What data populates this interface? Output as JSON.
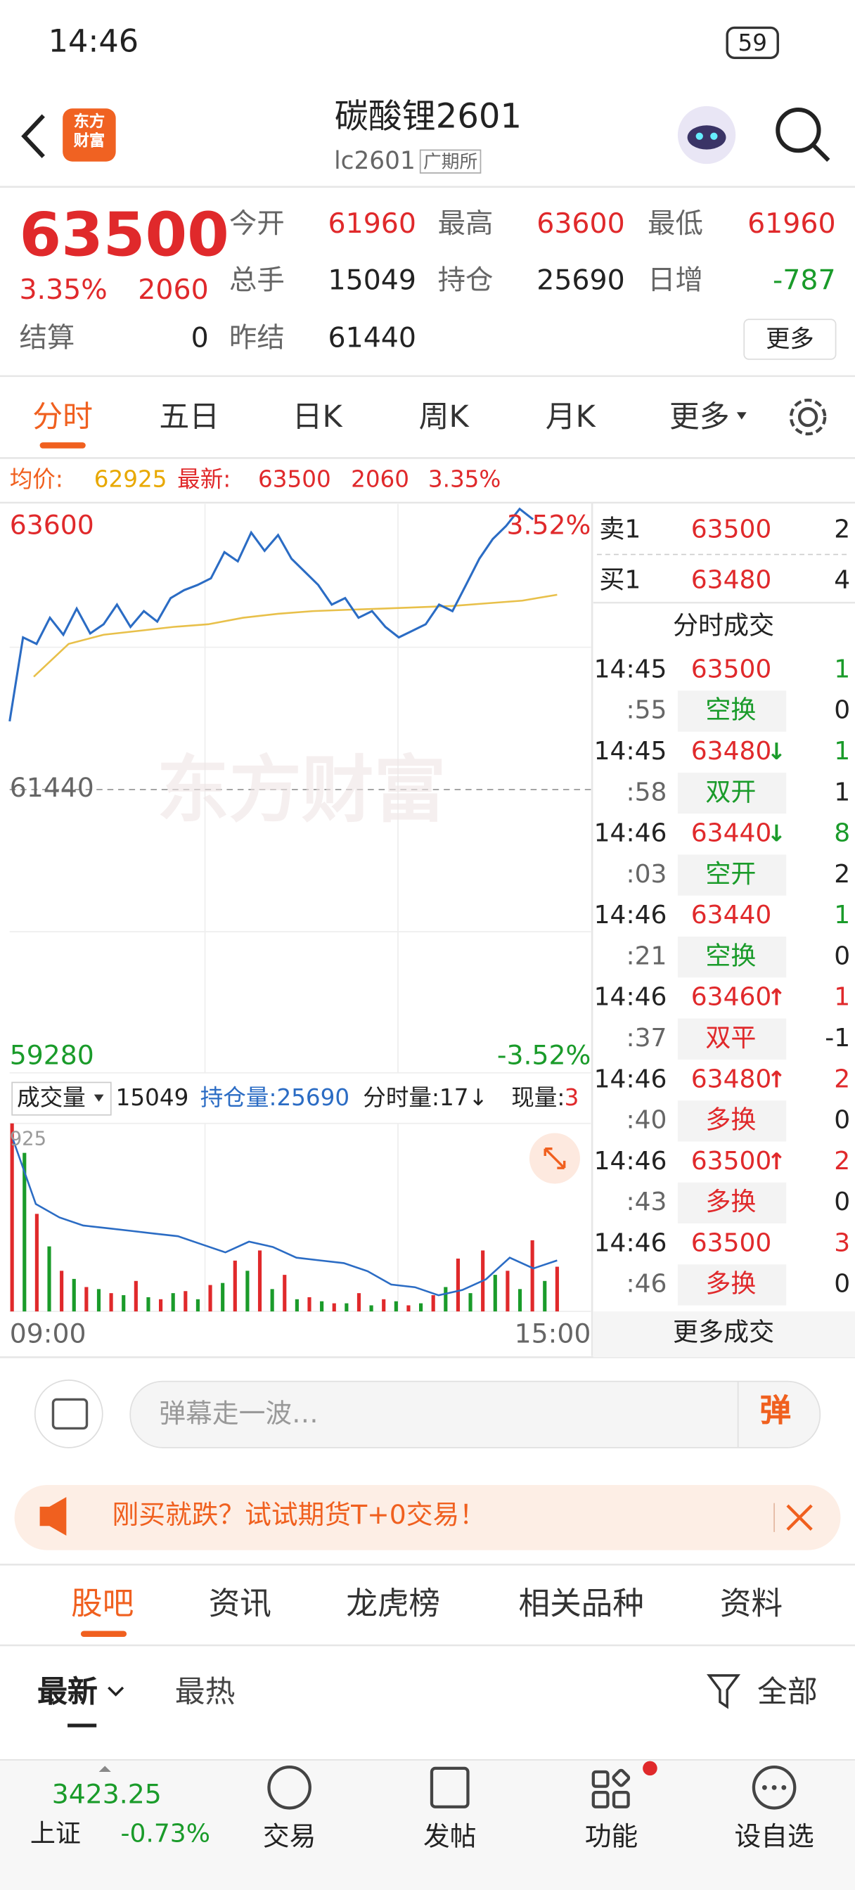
{
  "status_bar": {
    "time": "14:46",
    "battery": "59"
  },
  "header": {
    "logo": "东方财富",
    "title": "碳酸锂2601",
    "code": "lc2601",
    "exchange": "广期所"
  },
  "quote": {
    "price": "63500",
    "change_pct": "3.35%",
    "change": "2060",
    "settle_label": "结算",
    "settle": "0",
    "fields": [
      {
        "label": "今开",
        "value": "61960",
        "color": "#e0292b"
      },
      {
        "label": "最高",
        "value": "63600",
        "color": "#e0292b"
      },
      {
        "label": "最低",
        "value": "61960",
        "color": "#e0292b"
      },
      {
        "label": "总手",
        "value": "15049",
        "color": "#222222"
      },
      {
        "label": "持仓",
        "value": "25690",
        "color": "#222222"
      },
      {
        "label": "日增",
        "value": "-787",
        "color": "#1a9b2a"
      },
      {
        "label": "昨结",
        "value": "61440",
        "color": "#222222"
      }
    ],
    "more": "更多"
  },
  "tabs": [
    "分时",
    "五日",
    "日K",
    "周K",
    "月K",
    "更多"
  ],
  "info_bar": {
    "avg_label": "均价:",
    "avg": "62925",
    "last_label": "最新:",
    "last": "63500",
    "change": "2060",
    "change_pct": "3.35%"
  },
  "intraday_chart": {
    "type": "line",
    "ylim": [
      59280,
      63600
    ],
    "yticks": [
      59280,
      61440,
      63600
    ],
    "pct_low": "-3.52%",
    "pct_high": "3.52%",
    "xticks": [
      "09:00",
      "15:00"
    ],
    "watermark": "东方财富",
    "price_color": "#2b6cc4",
    "avg_color": "#e8c04a",
    "price": [
      61960,
      62600,
      62550,
      62750,
      62620,
      62820,
      62630,
      62700,
      62850,
      62680,
      62800,
      62720,
      62900,
      62960,
      63000,
      63050,
      63250,
      63180,
      63400,
      63260,
      63380,
      63200,
      63100,
      63000,
      62850,
      62900,
      62750,
      62800,
      62680,
      62600,
      62650,
      62700,
      62850,
      62800,
      63000,
      63200,
      63350,
      63450,
      63580,
      63500
    ],
    "avg": [
      62300,
      62550,
      62620,
      62650,
      62680,
      62700,
      62750,
      62780,
      62800,
      62810,
      62820,
      62830,
      62840,
      62860,
      62880,
      62925
    ]
  },
  "volume_panel": {
    "selector": "成交量",
    "total": "15049",
    "open_interest": "持仓量:25690",
    "tick_volume": "分时量:17↓",
    "current_label": "现量:",
    "current": "3",
    "ymax": 925,
    "up_color": "#e0292b",
    "down_color": "#1a9b2a",
    "oi_color": "#2b6cc4",
    "oi_ylim": [
      25500,
      26200
    ],
    "up": [
      925,
      null,
      480,
      null,
      200,
      null,
      120,
      null,
      90,
      null,
      150,
      null,
      60,
      null,
      100,
      null,
      130,
      null,
      250,
      null,
      300,
      null,
      180,
      null,
      70,
      null,
      40,
      null,
      90,
      null,
      60,
      null,
      30,
      null,
      80,
      null,
      260,
      null,
      300,
      null,
      200,
      null,
      350,
      null,
      220
    ],
    "down": [
      null,
      780,
      null,
      320,
      null,
      160,
      null,
      110,
      null,
      80,
      null,
      70,
      null,
      90,
      null,
      60,
      null,
      140,
      null,
      200,
      null,
      110,
      null,
      60,
      null,
      50,
      null,
      40,
      null,
      30,
      null,
      50,
      null,
      40,
      null,
      120,
      null,
      90,
      null,
      180,
      null,
      110,
      null,
      150,
      null
    ],
    "oi": [
      26150,
      25900,
      25850,
      25820,
      25810,
      25800,
      25790,
      25780,
      25750,
      25720,
      25760,
      25740,
      25700,
      25690,
      25680,
      25650,
      25600,
      25590,
      25560,
      25580,
      25620,
      25700,
      25660,
      25690
    ]
  },
  "order_book": {
    "ask": {
      "label": "卖1",
      "price": "63500",
      "volume": "2"
    },
    "bid": {
      "label": "买1",
      "price": "63480",
      "volume": "4"
    }
  },
  "trades": {
    "title": "分时成交",
    "more": "更多成交",
    "rows": [
      {
        "time": "14:45",
        "price": "63500",
        "arrow": "",
        "volume": "1",
        "color": "#1a9b2a",
        "sub_time": ":55",
        "kind": "空换",
        "kind_volume": "0"
      },
      {
        "time": "14:45",
        "price": "63480",
        "arrow": "↓",
        "volume": "1",
        "color": "#1a9b2a",
        "sub_time": ":58",
        "kind": "双开",
        "kind_volume": "1"
      },
      {
        "time": "14:46",
        "price": "63440",
        "arrow": "↓",
        "volume": "8",
        "color": "#1a9b2a",
        "sub_time": ":03",
        "kind": "空开",
        "kind_volume": "2"
      },
      {
        "time": "14:46",
        "price": "63440",
        "arrow": "",
        "volume": "1",
        "color": "#1a9b2a",
        "sub_time": ":21",
        "kind": "空换",
        "kind_volume": "0"
      },
      {
        "time": "14:46",
        "price": "63460",
        "arrow": "↑",
        "volume": "1",
        "color": "#e0292b",
        "sub_time": ":37",
        "kind": "双平",
        "kind_volume": "-1"
      },
      {
        "time": "14:46",
        "price": "63480",
        "arrow": "↑",
        "volume": "2",
        "color": "#e0292b",
        "sub_time": ":40",
        "kind": "多换",
        "kind_volume": "0"
      },
      {
        "time": "14:46",
        "price": "63500",
        "arrow": "↑",
        "volume": "2",
        "color": "#e0292b",
        "sub_time": ":43",
        "kind": "多换",
        "kind_volume": "0"
      },
      {
        "time": "14:46",
        "price": "63500",
        "arrow": "",
        "volume": "3",
        "color": "#e0292b",
        "sub_time": ":46",
        "kind": "多换",
        "kind_volume": "0"
      }
    ]
  },
  "comment_bar": {
    "placeholder": "弹幕走一波…",
    "button": "弹"
  },
  "banner": {
    "text": "刚买就跌？试试期货T+0交易！"
  },
  "community_tabs": [
    "股吧",
    "资讯",
    "龙虎榜",
    "相关品种",
    "资料"
  ],
  "sort": {
    "options": [
      "最新",
      "最热"
    ],
    "filter": "全部"
  },
  "bottom_nav": {
    "index_value": "3423.25",
    "index_name": "上证",
    "index_change": "-0.73%",
    "items": [
      "交易",
      "发帖",
      "功能",
      "设自选"
    ]
  }
}
